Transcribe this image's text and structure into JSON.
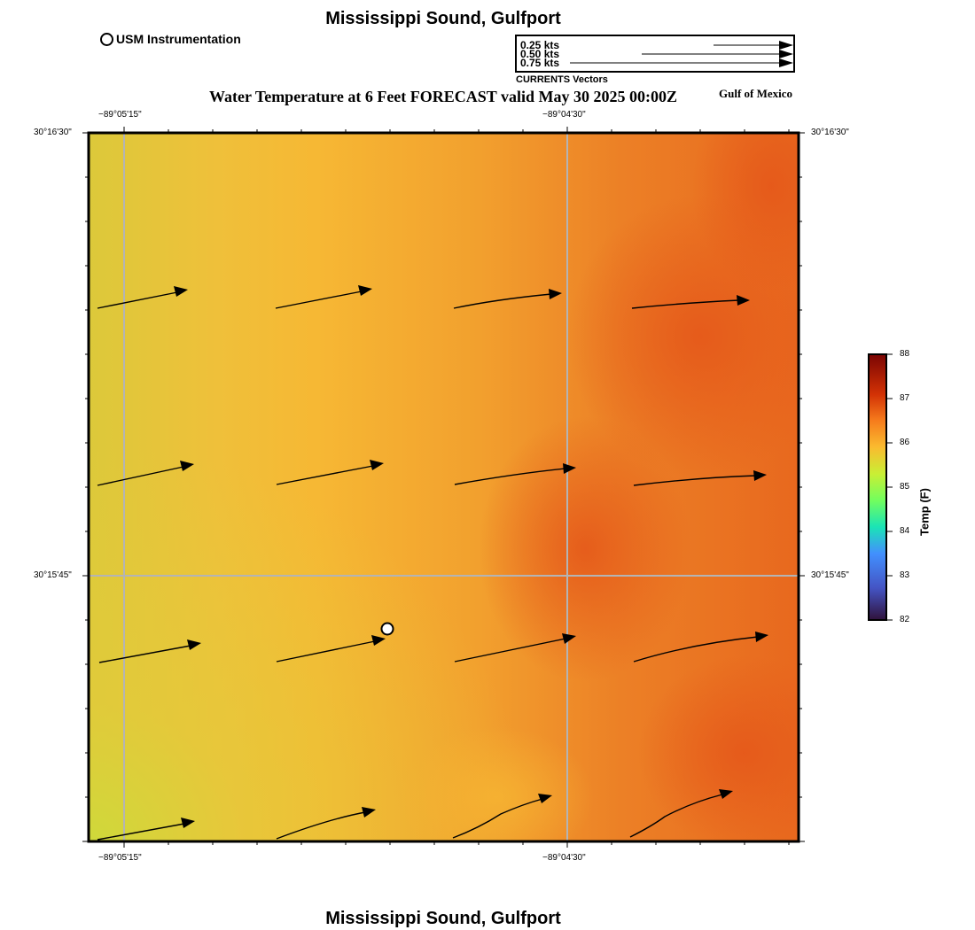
{
  "title": "Mississippi Sound, Gulfport",
  "footer_title": "Mississippi Sound, Gulfport",
  "usm_legend_label": "USM Instrumentation",
  "vector_legend": {
    "labels": [
      "0.25 kts",
      "0.50 kts",
      "0.75 kts"
    ],
    "caption": "CURRENTS Vectors"
  },
  "subtitle": "Water Temperature at 6 Feet FORECAST valid May 30 2025 00:00Z",
  "region_label": "Gulf of Mexico",
  "axes": {
    "lon_ticks": [
      "−89°05'15\"",
      "−89°04'30\""
    ],
    "lat_ticks": [
      "30°16'30\"",
      "30°15'45\""
    ]
  },
  "colorbar": {
    "title": "Temp (F)",
    "ticks": [
      "88",
      "87",
      "86",
      "85",
      "84",
      "83",
      "82"
    ],
    "min": 82,
    "max": 88
  },
  "colors": {
    "cool": "#d4d73a",
    "warm_yellow": "#f5b733",
    "orange": "#f0992e",
    "hot_orange": "#e8601c",
    "gridline": "#b4b4b4"
  },
  "icons": [
    "usm-instrument-marker-icon",
    "current-vector-arrow-icon"
  ]
}
